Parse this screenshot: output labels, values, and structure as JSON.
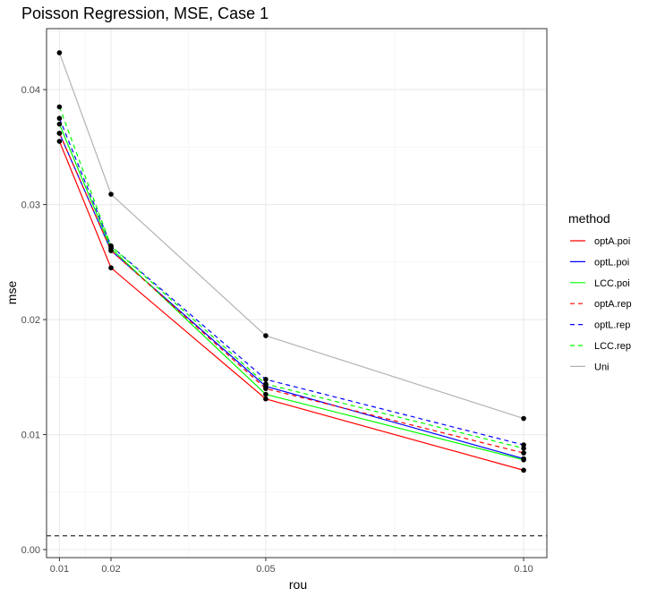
{
  "chart_data": {
    "type": "line",
    "title": "Poisson Regression, MSE, Case 1",
    "xlabel": "rou",
    "ylabel": "mse",
    "x": [
      0.01,
      0.02,
      0.05,
      0.1
    ],
    "x_ticks": [
      "0.01",
      "0.02",
      "0.05",
      "0.10"
    ],
    "y_ticks": [
      "0.00",
      "0.01",
      "0.02",
      "0.03",
      "0.04"
    ],
    "xlim": [
      0.0075,
      0.1045
    ],
    "ylim": [
      -0.0007,
      0.0453
    ],
    "grid": true,
    "legend_title": "method",
    "legend_position": "right",
    "reference_line": {
      "y": 0.0012,
      "style": "dashed",
      "color": "#333333"
    },
    "series": [
      {
        "name": "optA.poi",
        "color": "#ff0000",
        "dash": "solid",
        "values": [
          0.0355,
          0.0245,
          0.0131,
          0.0069
        ]
      },
      {
        "name": "optL.poi",
        "color": "#0000ff",
        "dash": "solid",
        "values": [
          0.0362,
          0.026,
          0.0142,
          0.0079
        ]
      },
      {
        "name": "LCC.poi",
        "color": "#00ff00",
        "dash": "solid",
        "values": [
          0.037,
          0.0262,
          0.0135,
          0.0078
        ]
      },
      {
        "name": "optA.rep",
        "color": "#ff0000",
        "dash": "dashed",
        "values": [
          0.0362,
          0.026,
          0.014,
          0.0084
        ]
      },
      {
        "name": "optL.rep",
        "color": "#0000ff",
        "dash": "dashed",
        "values": [
          0.0375,
          0.0264,
          0.0148,
          0.0091
        ]
      },
      {
        "name": "LCC.rep",
        "color": "#00ff00",
        "dash": "dashed",
        "values": [
          0.0385,
          0.0264,
          0.0144,
          0.0088
        ]
      },
      {
        "name": "Uni",
        "color": "#b3b3b3",
        "dash": "solid",
        "values": [
          0.0432,
          0.0309,
          0.0186,
          0.0114
        ]
      }
    ]
  }
}
